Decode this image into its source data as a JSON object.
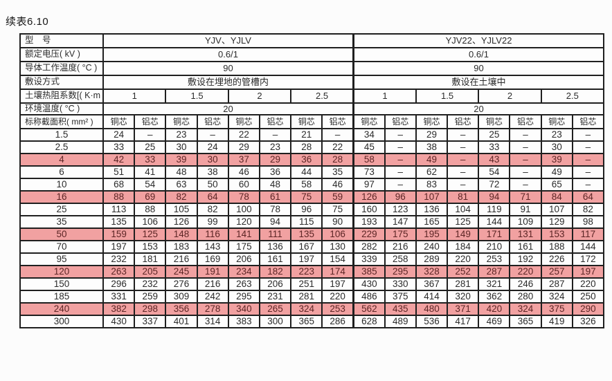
{
  "page": {
    "title": "续表6.10"
  },
  "colors": {
    "highlight_bg": "#f1a1a1",
    "highlight_text": "#5c2525",
    "border": "#1f1f1f"
  },
  "table": {
    "header_rows": [
      {
        "label": "型　号",
        "groups": [
          "YJV、YJLV",
          "YJV22、YJLV22"
        ]
      },
      {
        "label": "额定电压( kV )",
        "groups": [
          "0.6/1",
          "0.6/1"
        ]
      },
      {
        "label": "导体工作温度( °C )",
        "groups": [
          "90",
          "90"
        ]
      },
      {
        "label": "敷设方式",
        "groups": [
          "敷设在埋地的管槽内",
          "敷设在土壤中"
        ]
      },
      {
        "label": "土壤热阻系数[( K·m )/W]",
        "groups": [
          "1",
          "1.5",
          "2",
          "2.5",
          "1",
          "1.5",
          "2",
          "2.5"
        ]
      },
      {
        "label": "环境温度( °C )",
        "groups": [
          "20",
          "20"
        ]
      }
    ],
    "column_header": {
      "label": "标称截面积( mm² )",
      "cells": [
        "铜芯",
        "铝芯",
        "铜芯",
        "铝芯",
        "铜芯",
        "铝芯",
        "铜芯",
        "铝芯",
        "铜芯",
        "铝芯",
        "铜芯",
        "铝芯",
        "铜芯",
        "铝芯",
        "铜芯",
        "铝芯"
      ]
    },
    "rows": [
      {
        "size": "1.5",
        "highlight": false,
        "values": [
          "24",
          "–",
          "23",
          "–",
          "22",
          "–",
          "21",
          "–",
          "34",
          "–",
          "29",
          "–",
          "25",
          "–",
          "23",
          "–"
        ]
      },
      {
        "size": "2.5",
        "highlight": false,
        "values": [
          "33",
          "25",
          "30",
          "24",
          "29",
          "23",
          "28",
          "22",
          "45",
          "–",
          "38",
          "–",
          "33",
          "–",
          "30",
          "–"
        ]
      },
      {
        "size": "4",
        "highlight": true,
        "values": [
          "42",
          "33",
          "39",
          "30",
          "37",
          "29",
          "36",
          "28",
          "58",
          "–",
          "49",
          "–",
          "43",
          "–",
          "39",
          "–"
        ]
      },
      {
        "size": "6",
        "highlight": false,
        "values": [
          "51",
          "41",
          "48",
          "38",
          "46",
          "36",
          "44",
          "35",
          "73",
          "–",
          "62",
          "–",
          "54",
          "–",
          "49",
          "–"
        ]
      },
      {
        "size": "10",
        "highlight": false,
        "values": [
          "68",
          "54",
          "63",
          "50",
          "60",
          "48",
          "58",
          "46",
          "97",
          "–",
          "83",
          "–",
          "72",
          "–",
          "65",
          "–"
        ]
      },
      {
        "size": "16",
        "highlight": true,
        "values": [
          "88",
          "69",
          "82",
          "64",
          "78",
          "61",
          "75",
          "59",
          "126",
          "96",
          "107",
          "81",
          "94",
          "71",
          "84",
          "64"
        ]
      },
      {
        "size": "25",
        "highlight": false,
        "values": [
          "113",
          "88",
          "105",
          "82",
          "100",
          "78",
          "96",
          "75",
          "160",
          "123",
          "136",
          "104",
          "119",
          "91",
          "107",
          "82"
        ]
      },
      {
        "size": "35",
        "highlight": false,
        "values": [
          "135",
          "106",
          "126",
          "99",
          "120",
          "94",
          "115",
          "90",
          "193",
          "147",
          "165",
          "125",
          "144",
          "109",
          "129",
          "98"
        ]
      },
      {
        "size": "50",
        "highlight": true,
        "values": [
          "159",
          "125",
          "148",
          "116",
          "141",
          "111",
          "135",
          "106",
          "229",
          "175",
          "195",
          "149",
          "171",
          "131",
          "153",
          "117"
        ]
      },
      {
        "size": "70",
        "highlight": false,
        "values": [
          "197",
          "153",
          "183",
          "143",
          "175",
          "136",
          "167",
          "130",
          "282",
          "216",
          "240",
          "184",
          "210",
          "161",
          "188",
          "144"
        ]
      },
      {
        "size": "95",
        "highlight": false,
        "values": [
          "232",
          "181",
          "216",
          "169",
          "206",
          "161",
          "197",
          "154",
          "339",
          "258",
          "289",
          "220",
          "253",
          "192",
          "226",
          "172"
        ]
      },
      {
        "size": "120",
        "highlight": true,
        "values": [
          "263",
          "205",
          "245",
          "191",
          "234",
          "182",
          "223",
          "174",
          "385",
          "295",
          "328",
          "252",
          "287",
          "220",
          "257",
          "197"
        ]
      },
      {
        "size": "150",
        "highlight": false,
        "values": [
          "296",
          "232",
          "276",
          "216",
          "263",
          "206",
          "251",
          "197",
          "430",
          "330",
          "367",
          "281",
          "321",
          "246",
          "287",
          "220"
        ]
      },
      {
        "size": "185",
        "highlight": false,
        "values": [
          "331",
          "259",
          "309",
          "242",
          "295",
          "231",
          "281",
          "220",
          "486",
          "375",
          "414",
          "320",
          "362",
          "280",
          "324",
          "250"
        ]
      },
      {
        "size": "240",
        "highlight": true,
        "values": [
          "382",
          "298",
          "356",
          "278",
          "340",
          "265",
          "324",
          "253",
          "562",
          "435",
          "480",
          "371",
          "420",
          "324",
          "375",
          "290"
        ]
      },
      {
        "size": "300",
        "highlight": false,
        "values": [
          "430",
          "337",
          "401",
          "314",
          "383",
          "300",
          "365",
          "286",
          "628",
          "489",
          "536",
          "417",
          "469",
          "365",
          "419",
          "326"
        ]
      }
    ]
  }
}
